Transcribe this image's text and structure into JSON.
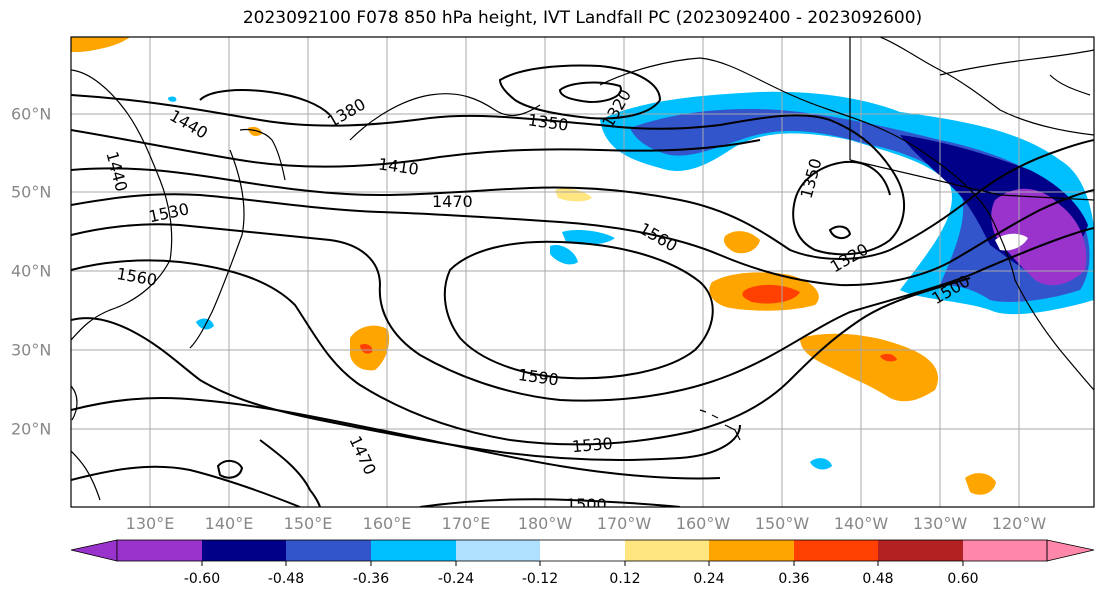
{
  "title": "2023092100 F078 850 hPa height, IVT Landfall PC (2023092400 - 2023092600)",
  "lat_labels": [
    "60°N",
    "50°N",
    "40°N",
    "30°N",
    "20°N"
  ],
  "lon_labels": [
    "130°E",
    "140°E",
    "150°E",
    "160°E",
    "170°E",
    "180°W",
    "170°W",
    "160°W",
    "150°W",
    "140°W",
    "130°W",
    "120°W"
  ],
  "contour_labels": [
    "1380",
    "1440",
    "1440",
    "1320",
    "1350",
    "1410",
    "1470",
    "1530",
    "1350",
    "1560",
    "1320",
    "1560",
    "1500",
    "1590",
    "1530",
    "1470",
    "1500"
  ],
  "colorbar": {
    "ticks": [
      "-0.60",
      "-0.48",
      "-0.36",
      "-0.24",
      "-0.12",
      "0.12",
      "0.24",
      "0.36",
      "0.48",
      "0.60"
    ],
    "colors": [
      "#9933cc",
      "#000088",
      "#3355cc",
      "#00bfff",
      "#b0e0ff",
      "#ffffff",
      "#ffe680",
      "#ffa500",
      "#ff4000",
      "#b22222",
      "#ff88aa"
    ]
  },
  "colors": {
    "contour": "#000000",
    "coast": "#000000",
    "grid": "#a8a8a8"
  }
}
